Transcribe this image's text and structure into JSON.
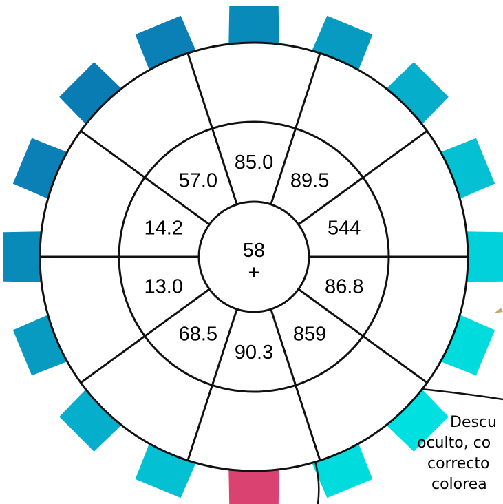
{
  "puzzle": {
    "center_value": "58",
    "center_symbol": "+",
    "inner_ring": [
      "85.0",
      "89.5",
      "544",
      "86.8",
      "859",
      "90.3",
      "68.5",
      "13.0",
      "14.2",
      "57.0"
    ],
    "hint_lines": [
      "Descu",
      "oculto, co",
      "correcto",
      "colorea"
    ],
    "colors": {
      "teeth_gradient": [
        "#00e0e0",
        "#0a7cb4"
      ],
      "highlight_tooth": "#d94271",
      "lines": "#111111",
      "hand_accent": "#c8a76a"
    }
  }
}
